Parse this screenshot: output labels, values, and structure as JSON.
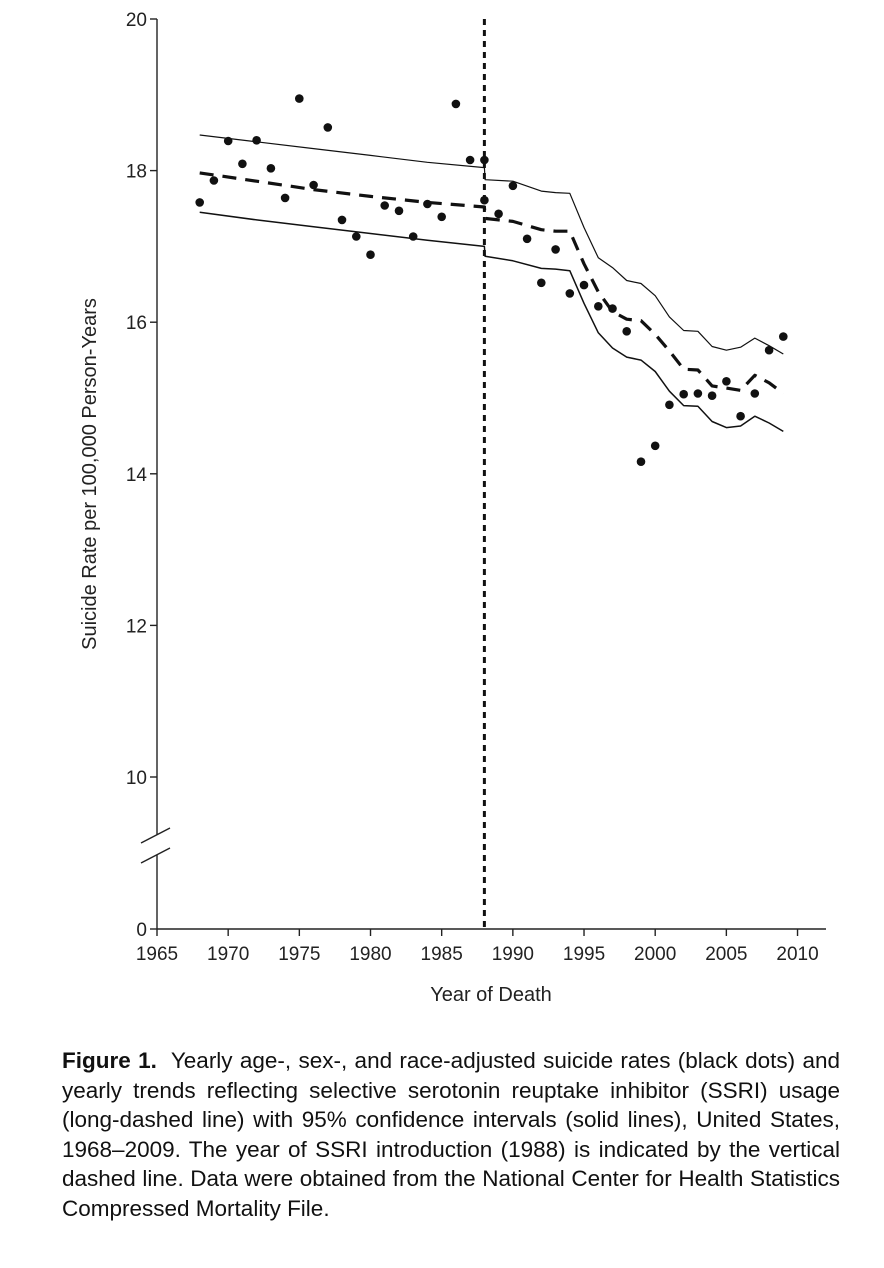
{
  "chart_data": {
    "type": "scatter",
    "title": "",
    "xlabel": "Year of Death",
    "ylabel": "Suicide Rate per 100,000 Person-Years",
    "xlim": [
      1965,
      2012
    ],
    "ylim": [
      0,
      20
    ],
    "axis_break": [
      8,
      9.5
    ],
    "x_ticks": [
      1965,
      1970,
      1975,
      1980,
      1985,
      1990,
      1995,
      2000,
      2005,
      2010
    ],
    "y_ticks": [
      0,
      10,
      12,
      14,
      16,
      18,
      20
    ],
    "grid": false,
    "legend": "none",
    "intervention_year": 1988,
    "series": [
      {
        "name": "",
        "kind": "points",
        "x": [
          1968,
          1969,
          1970,
          1971,
          1972,
          1973,
          1974,
          1975,
          1976,
          1977,
          1978,
          1979,
          1980,
          1981,
          1982,
          1983,
          1984,
          1985,
          1986,
          1987,
          1988,
          1988,
          1989,
          1990,
          1991,
          1992,
          1993,
          1994,
          1995,
          1996,
          1997,
          1998,
          1999,
          2000,
          2001,
          2002,
          2003,
          2004,
          2005,
          2006,
          2007,
          2008,
          2009
        ],
        "y": [
          17.58,
          17.87,
          18.39,
          18.09,
          18.4,
          18.03,
          17.64,
          18.95,
          17.81,
          18.57,
          17.35,
          17.13,
          16.89,
          17.54,
          17.47,
          17.13,
          17.56,
          17.39,
          18.88,
          18.14,
          18.14,
          17.61,
          17.43,
          17.8,
          17.1,
          16.52,
          16.96,
          16.38,
          16.49,
          16.21,
          16.18,
          15.88,
          14.16,
          14.37,
          14.91,
          15.05,
          15.06,
          15.03,
          15.22,
          14.76,
          15.06,
          15.63,
          15.81
        ]
      },
      {
        "name": "",
        "kind": "dashed-line",
        "x": [
          1968,
          1972,
          1976,
          1980,
          1984,
          1988,
          1988.05,
          1990,
          1992,
          1993,
          1994,
          1995,
          1996,
          1997,
          1998,
          1999,
          2000,
          2001,
          2002,
          2003,
          2004,
          2005,
          2006,
          2007,
          2008,
          2009
        ],
        "y": [
          17.97,
          17.86,
          17.75,
          17.66,
          17.58,
          17.52,
          17.37,
          17.33,
          17.22,
          17.2,
          17.2,
          16.77,
          16.4,
          16.14,
          16.04,
          16.02,
          15.84,
          15.62,
          15.38,
          15.37,
          15.16,
          15.13,
          15.1,
          15.3,
          15.2,
          15.06
        ]
      },
      {
        "name": "",
        "kind": "solid-line",
        "x": [
          1968,
          1972,
          1976,
          1980,
          1984,
          1988,
          1988.05,
          1990,
          1992,
          1993,
          1994,
          1995,
          1996,
          1997,
          1998,
          1999,
          2000,
          2001,
          2002,
          2003,
          2004,
          2005,
          2006,
          2007,
          2008,
          2009
        ],
        "y": [
          18.47,
          18.38,
          18.29,
          18.2,
          18.11,
          18.04,
          17.88,
          17.86,
          17.73,
          17.71,
          17.7,
          17.25,
          16.85,
          16.72,
          16.55,
          16.51,
          16.35,
          16.07,
          15.89,
          15.88,
          15.68,
          15.63,
          15.67,
          15.79,
          15.69,
          15.58
        ]
      },
      {
        "name": "",
        "kind": "solid-line",
        "x": [
          1968,
          1972,
          1976,
          1980,
          1984,
          1988,
          1988.05,
          1990,
          1992,
          1993,
          1994,
          1995,
          1996,
          1997,
          1998,
          1999,
          2000,
          2001,
          2002,
          2003,
          2004,
          2005,
          2006,
          2007,
          2008,
          2009
        ],
        "y": [
          17.45,
          17.35,
          17.26,
          17.17,
          17.08,
          17.0,
          16.87,
          16.81,
          16.71,
          16.7,
          16.68,
          16.25,
          15.86,
          15.66,
          15.54,
          15.5,
          15.35,
          15.09,
          14.9,
          14.89,
          14.69,
          14.61,
          14.63,
          14.76,
          14.67,
          14.56
        ]
      }
    ]
  },
  "caption": {
    "label": "Figure 1.",
    "text": "Yearly age-, sex-, and race-adjusted suicide rates (black dots) and yearly trends reflecting selective serotonin reuptake inhibitor (SSRI) usage (long-dashed line) with 95% confidence intervals (solid lines), United States, 1968–2009. The year of SSRI introduction (1988) is indicated by the vertical dashed line. Data were obtained from the National Center for Health Statistics Compressed Mortality File."
  }
}
